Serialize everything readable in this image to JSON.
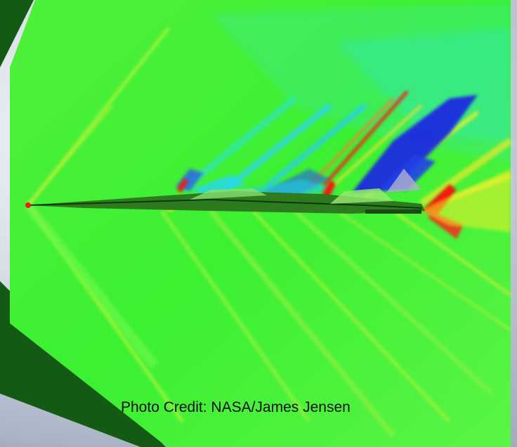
{
  "image": {
    "subject": "Computational fluid dynamics shock-wave visualization of a supersonic aircraft",
    "colors": {
      "field": "#3cf032",
      "field_light": "#7cfa4c",
      "shock_cyan": "#32e6d6",
      "shock_blue": "#1a2ae0",
      "shock_red": "#f01e10",
      "shock_yellow": "#f0f028",
      "edge_dark_green": "#145a14"
    }
  },
  "caption": {
    "credit": "Photo Credit: NASA/James Jensen"
  }
}
